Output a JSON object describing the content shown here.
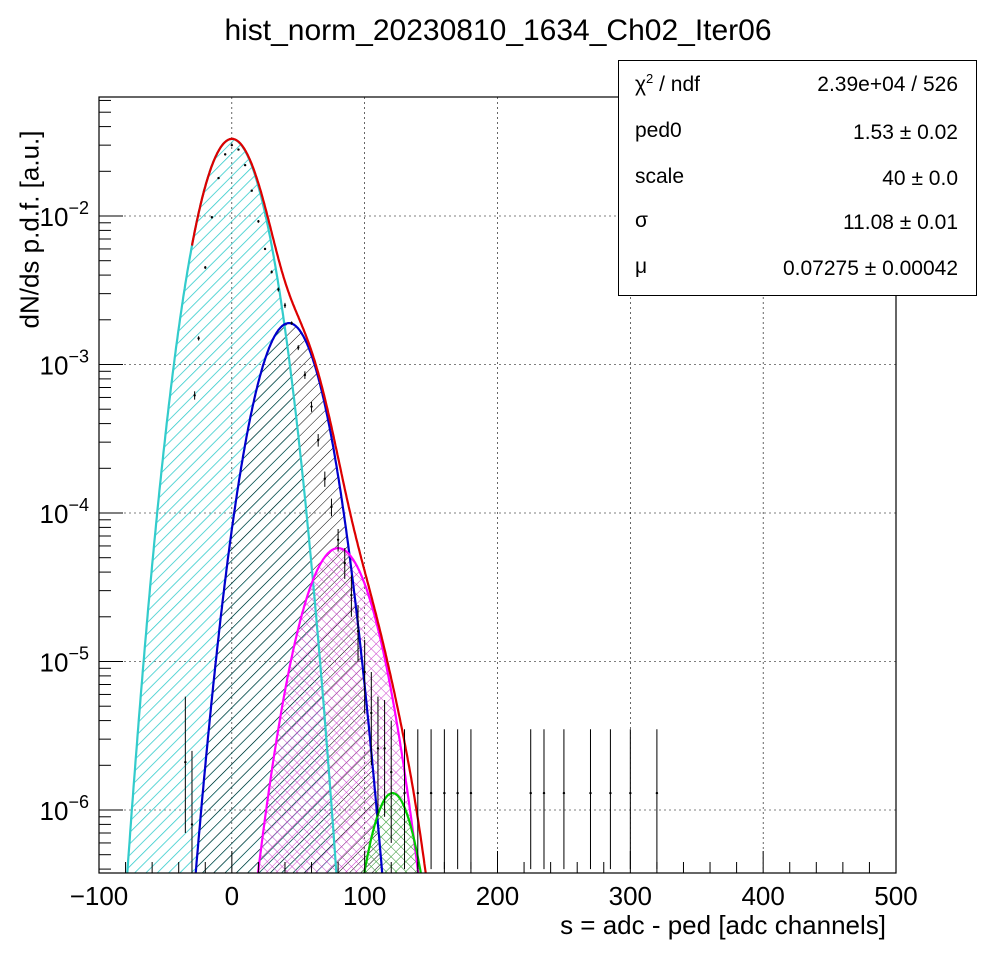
{
  "chart_data": {
    "type": "line",
    "title": "hist_norm_20230810_1634_Ch02_Iter06",
    "xlabel": "s = adc - ped [adc channels]",
    "ylabel": "dN/ds p.d.f. [a.u.]",
    "xlim": [
      -100,
      500
    ],
    "ylim": [
      3.5e-07,
      0.065
    ],
    "yscale": "log",
    "grid": true,
    "x_ticks": [
      "−100",
      "0",
      "100",
      "200",
      "300",
      "400",
      "500"
    ],
    "y_ticks": [
      {
        "base": "10",
        "exp": "−2",
        "value": 0.01
      },
      {
        "base": "10",
        "exp": "−3",
        "value": 0.001
      },
      {
        "base": "10",
        "exp": "−4",
        "value": 0.0001
      },
      {
        "base": "10",
        "exp": "−5",
        "value": 1e-05
      },
      {
        "base": "10",
        "exp": "−6",
        "value": 1e-06
      }
    ],
    "components": [
      {
        "color": "#33cccc",
        "mu": 0,
        "sigma": 16.5,
        "peak": 0.033,
        "hatch": "cyan"
      },
      {
        "color": "#0000cc",
        "mu": 43,
        "sigma": 17,
        "peak": 0.0019,
        "hatch": "black"
      },
      {
        "color": "#ff00ff",
        "mu": 80,
        "sigma": 19,
        "peak": 5.8e-05,
        "hatch": "magenta"
      },
      {
        "color": "#00cc00",
        "mu": 121,
        "sigma": 13.5,
        "peak": 1.3e-06,
        "hatch": "green"
      }
    ],
    "total_color": "#dd0000",
    "data_points": [
      {
        "x": -35,
        "y": 2.1e-06,
        "lo": 7e-07,
        "hi": 5.8e-06
      },
      {
        "x": -30,
        "y": 8e-07,
        "lo": 3.5e-07,
        "hi": 2.5e-06
      },
      {
        "x": -28,
        "y": 0.00062,
        "lo": 0.00058,
        "hi": 0.00066
      },
      {
        "x": -25,
        "y": 0.0015,
        "lo": 0.00145,
        "hi": 0.00155
      },
      {
        "x": -20,
        "y": 0.0045,
        "lo": 0.0044,
        "hi": 0.0046
      },
      {
        "x": -15,
        "y": 0.0098,
        "lo": 0.0096,
        "hi": 0.01
      },
      {
        "x": -10,
        "y": 0.018,
        "lo": 0.0178,
        "hi": 0.0182
      },
      {
        "x": -5,
        "y": 0.026,
        "lo": 0.0258,
        "hi": 0.0262
      },
      {
        "x": 0,
        "y": 0.03,
        "lo": 0.0298,
        "hi": 0.0302
      },
      {
        "x": 5,
        "y": 0.028,
        "lo": 0.0278,
        "hi": 0.0282
      },
      {
        "x": 10,
        "y": 0.022,
        "lo": 0.0218,
        "hi": 0.0222
      },
      {
        "x": 15,
        "y": 0.0148,
        "lo": 0.0146,
        "hi": 0.015
      },
      {
        "x": 20,
        "y": 0.0092,
        "lo": 0.009,
        "hi": 0.0094
      },
      {
        "x": 25,
        "y": 0.006,
        "lo": 0.0059,
        "hi": 0.0061
      },
      {
        "x": 30,
        "y": 0.0042,
        "lo": 0.0041,
        "hi": 0.0043
      },
      {
        "x": 35,
        "y": 0.0032,
        "lo": 0.0031,
        "hi": 0.0033
      },
      {
        "x": 40,
        "y": 0.0025,
        "lo": 0.0024,
        "hi": 0.0026
      },
      {
        "x": 45,
        "y": 0.0019,
        "lo": 0.00185,
        "hi": 0.00195
      },
      {
        "x": 50,
        "y": 0.0013,
        "lo": 0.00125,
        "hi": 0.00135
      },
      {
        "x": 55,
        "y": 0.00085,
        "lo": 0.0008,
        "hi": 0.0009
      },
      {
        "x": 60,
        "y": 0.00052,
        "lo": 0.00048,
        "hi": 0.00056
      },
      {
        "x": 65,
        "y": 0.00031,
        "lo": 0.00028,
        "hi": 0.00034
      },
      {
        "x": 70,
        "y": 0.00017,
        "lo": 0.00015,
        "hi": 0.00019
      },
      {
        "x": 75,
        "y": 0.00011,
        "lo": 9.5e-05,
        "hi": 0.000125
      },
      {
        "x": 80,
        "y": 6.6e-05,
        "lo": 5.5e-05,
        "hi": 7.8e-05
      },
      {
        "x": 85,
        "y": 4.6e-05,
        "lo": 3.6e-05,
        "hi": 5.8e-05
      },
      {
        "x": 90,
        "y": 2.8e-05,
        "lo": 2e-05,
        "hi": 3.8e-05
      },
      {
        "x": 95,
        "y": 1.6e-05,
        "lo": 1e-05,
        "hi": 2.4e-05
      },
      {
        "x": 100,
        "y": 8.5e-06,
        "lo": 4.5e-06,
        "hi": 1.4e-05
      },
      {
        "x": 105,
        "y": 4.5e-06,
        "lo": 2e-06,
        "hi": 8.5e-06
      },
      {
        "x": 110,
        "y": 2.6e-06,
        "lo": 9e-07,
        "hi": 5.8e-06
      },
      {
        "x": 115,
        "y": 2.6e-06,
        "lo": 9e-07,
        "hi": 5.5e-06
      },
      {
        "x": 120,
        "y": 1.8e-06,
        "lo": 6e-07,
        "hi": 4e-06
      },
      {
        "x": 130,
        "y": 1.3e-06,
        "lo": 4e-07,
        "hi": 3.5e-06
      },
      {
        "x": 140,
        "y": 1.3e-06,
        "lo": 4e-07,
        "hi": 3.5e-06
      },
      {
        "x": 150,
        "y": 1.3e-06,
        "lo": 4e-07,
        "hi": 3.5e-06
      },
      {
        "x": 160,
        "y": 1.3e-06,
        "lo": 4e-07,
        "hi": 3.5e-06
      },
      {
        "x": 170,
        "y": 1.3e-06,
        "lo": 4e-07,
        "hi": 3.5e-06
      },
      {
        "x": 180,
        "y": 1.3e-06,
        "lo": 4e-07,
        "hi": 3.5e-06
      },
      {
        "x": 225,
        "y": 1.3e-06,
        "lo": 4e-07,
        "hi": 3.5e-06
      },
      {
        "x": 235,
        "y": 1.3e-06,
        "lo": 4e-07,
        "hi": 3.5e-06
      },
      {
        "x": 250,
        "y": 1.3e-06,
        "lo": 4e-07,
        "hi": 3.5e-06
      },
      {
        "x": 270,
        "y": 1.3e-06,
        "lo": 4e-07,
        "hi": 3.5e-06
      },
      {
        "x": 285,
        "y": 1.3e-06,
        "lo": 4e-07,
        "hi": 3.5e-06
      },
      {
        "x": 300,
        "y": 1.3e-06,
        "lo": 4e-07,
        "hi": 3.5e-06
      },
      {
        "x": 320,
        "y": 1.3e-06,
        "lo": 4e-07,
        "hi": 3.5e-06
      }
    ],
    "stats": [
      {
        "name_main": "χ",
        "name_sup": "2",
        "name_rest": " / ndf",
        "value": "2.39e+04 / 526"
      },
      {
        "name_main": "ped0",
        "name_sup": "",
        "name_rest": "",
        "value": "1.53  ± 0.02"
      },
      {
        "name_main": "scale",
        "name_sup": "",
        "name_rest": "",
        "value": "40  ± 0.0"
      },
      {
        "name_main": "σ",
        "name_sup": "",
        "name_rest": "",
        "value": "11.08  ± 0.01"
      },
      {
        "name_main": "μ",
        "name_sup": "",
        "name_rest": "",
        "value": "0.07275  ± 0.00042"
      }
    ]
  }
}
